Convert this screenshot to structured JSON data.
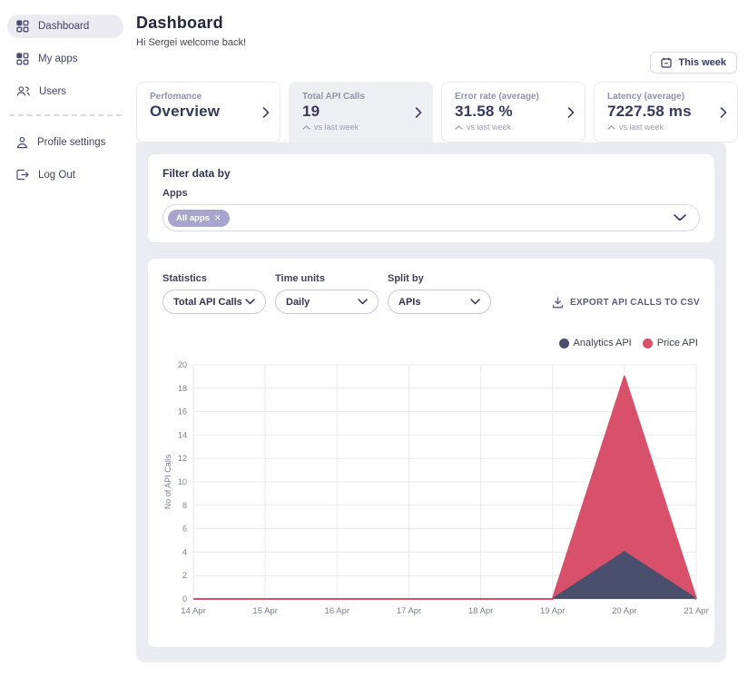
{
  "sidebar": {
    "items": [
      {
        "label": "Dashboard",
        "icon": "grid-icon",
        "active": true
      },
      {
        "label": "My apps",
        "icon": "grid-icon",
        "active": false
      },
      {
        "label": "Users",
        "icon": "users-icon",
        "active": false
      }
    ],
    "secondary_items": [
      {
        "label": "Profile settings",
        "icon": "person-icon"
      },
      {
        "label": "Log Out",
        "icon": "logout-icon"
      }
    ]
  },
  "header": {
    "title": "Dashboard",
    "greeting": "Hi Sergei welcome back!",
    "period_button": "This week"
  },
  "stat_cards": [
    {
      "label": "Perfomance",
      "value": "Overview",
      "sub": ""
    },
    {
      "label": "Total API Calls",
      "value": "19",
      "sub": "vs last week"
    },
    {
      "label": "Error rate (average)",
      "value": "31.58 %",
      "sub": "vs last week"
    },
    {
      "label": "Latency (average)",
      "value": "7227.58 ms",
      "sub": "vs last week"
    }
  ],
  "filter": {
    "heading": "Filter data by",
    "apps_label": "Apps",
    "chip_label": "All apps"
  },
  "controls": {
    "statistics_label": "Statistics",
    "statistics_value": "Total API Calls",
    "time_units_label": "Time units",
    "time_units_value": "Daily",
    "split_by_label": "Split by",
    "split_by_value": "APIs",
    "export_label": "EXPORT API CALLS TO CSV"
  },
  "chart_data": {
    "type": "area",
    "stacked": true,
    "x": [
      "14 Apr",
      "15 Apr",
      "16 Apr",
      "17 Apr",
      "18 Apr",
      "19 Apr",
      "20 Apr",
      "21 Apr"
    ],
    "series": [
      {
        "name": "Analytics API",
        "color": "#4b4f6e",
        "values": [
          0,
          0,
          0,
          0,
          0,
          0,
          4,
          0
        ]
      },
      {
        "name": "Price API",
        "color": "#d8506a",
        "values": [
          0,
          0,
          0,
          0,
          0,
          0,
          15,
          0
        ]
      }
    ],
    "ylabel": "No of API Calls",
    "ylim": [
      0,
      20
    ],
    "yticks": [
      0,
      2,
      4,
      6,
      8,
      10,
      12,
      14,
      16,
      18,
      20
    ],
    "grid": true,
    "legend_position": "top-right"
  },
  "colors": {
    "accent_navy": "#4b4f6e",
    "accent_red": "#d8506a",
    "panel_bg": "#ebecf1",
    "chip_bg": "#a9a4ce",
    "grid_line": "#e9e9ed",
    "tick_text": "#7d8194"
  }
}
